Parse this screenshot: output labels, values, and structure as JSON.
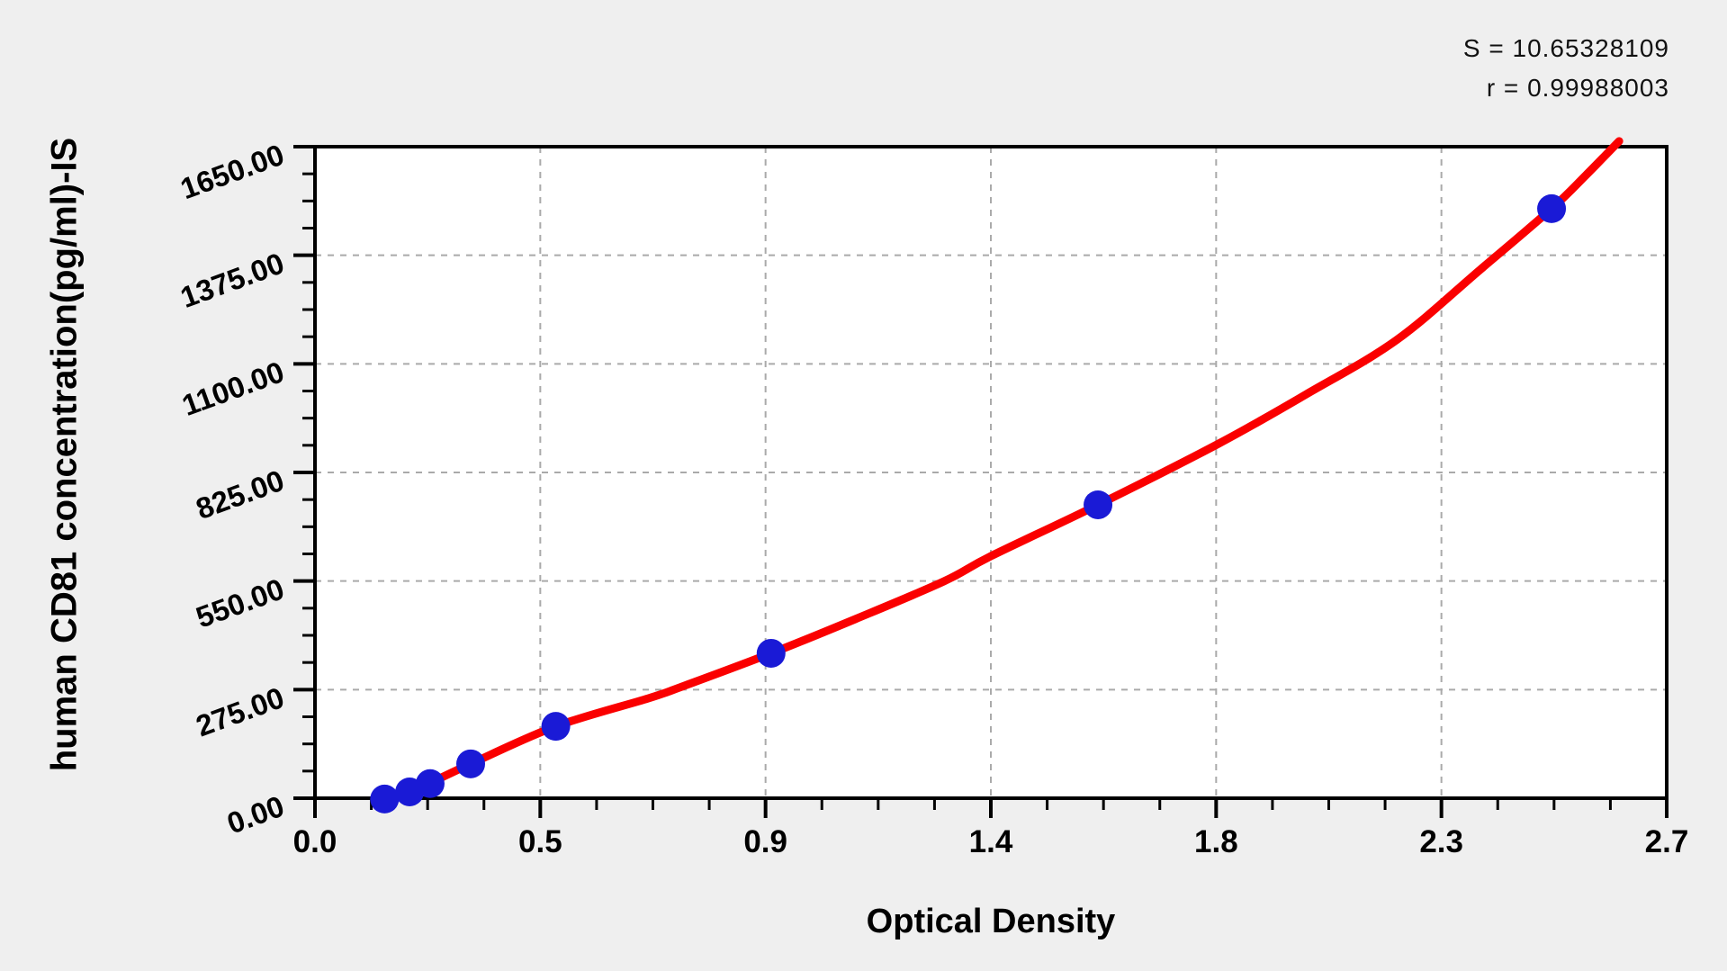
{
  "chart_data": {
    "type": "scatter",
    "title": "",
    "xlabel": "Optical Density",
    "ylabel": "human CD81 concentration(pg/ml)-IS",
    "annotations": {
      "s_label": "S = 10.65328109",
      "r_label": "r = 0.99988003"
    },
    "x_axis": {
      "min": 0,
      "max": 2.7,
      "tick_values": [
        0,
        0.45,
        0.9,
        1.35,
        1.8,
        2.25,
        2.7
      ],
      "tick_labels": [
        "0.0",
        "0.5",
        "0.9",
        "1.4",
        "1.8",
        "2.3",
        "2.7"
      ],
      "minor_per_major": 4
    },
    "y_axis": {
      "min": 0,
      "max": 1650,
      "tick_values": [
        0,
        275,
        550,
        825,
        1100,
        1375,
        1650
      ],
      "tick_labels": [
        "0.00",
        "275.00",
        "550.00",
        "825.00",
        "1100.00",
        "1375.00",
        "1650.00"
      ],
      "minor_per_major": 4
    },
    "grid": true,
    "legend": false,
    "points": [
      {
        "od": 0.139,
        "conc": -2
      },
      {
        "od": 0.189,
        "conc": 16
      },
      {
        "od": 0.23,
        "conc": 37
      },
      {
        "od": 0.311,
        "conc": 87
      },
      {
        "od": 0.481,
        "conc": 182
      },
      {
        "od": 0.911,
        "conc": 367
      },
      {
        "od": 1.564,
        "conc": 743
      },
      {
        "od": 2.47,
        "conc": 1493
      }
    ],
    "curve": [
      [
        0.122,
        -5
      ],
      [
        0.189,
        20
      ],
      [
        0.23,
        39
      ],
      [
        0.311,
        87
      ],
      [
        0.481,
        182
      ],
      [
        0.666,
        253
      ],
      [
        0.734,
        283
      ],
      [
        0.911,
        367
      ],
      [
        1.08,
        454
      ],
      [
        1.256,
        549
      ],
      [
        1.35,
        613
      ],
      [
        1.564,
        743
      ],
      [
        1.805,
        898
      ],
      [
        1.98,
        1023
      ],
      [
        2.16,
        1160
      ],
      [
        2.327,
        1338
      ],
      [
        2.47,
        1493
      ],
      [
        2.538,
        1577
      ],
      [
        2.605,
        1664
      ]
    ],
    "colors": {
      "curve": "#fa0000",
      "points": "#1a1ad6",
      "grid": "#aaaaaa",
      "axis": "#000000",
      "background": "#efefef",
      "plot_background": "#ffffff"
    }
  }
}
